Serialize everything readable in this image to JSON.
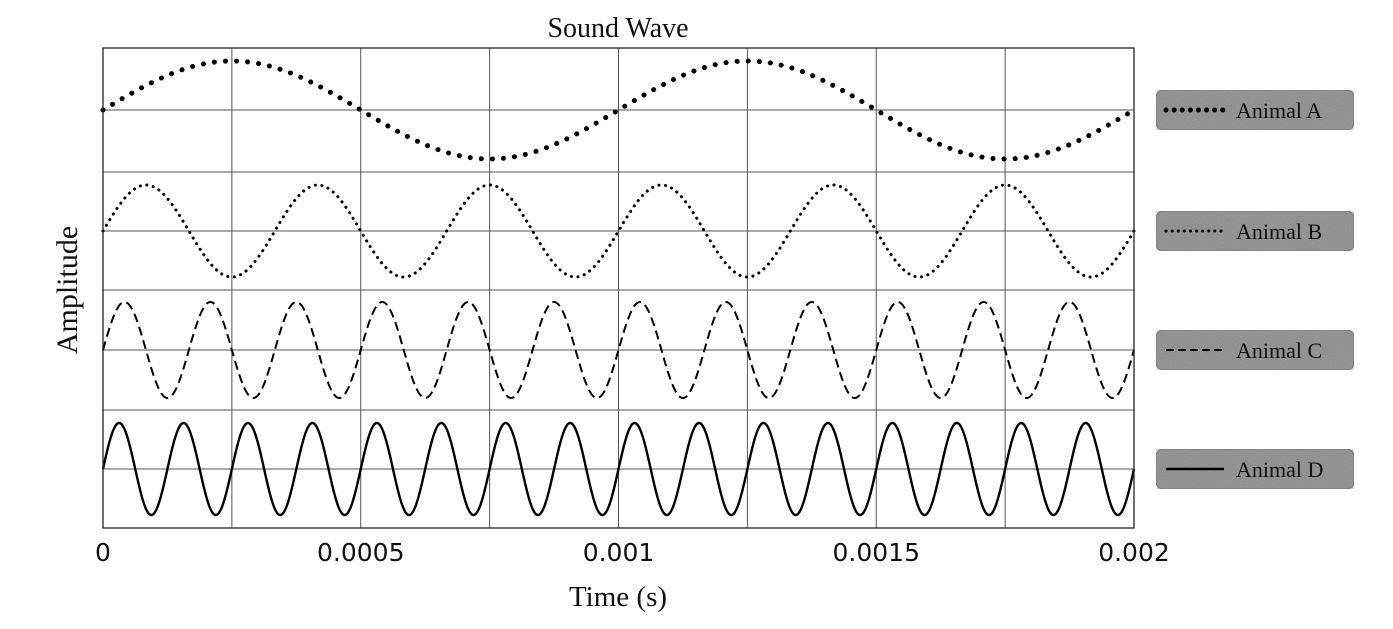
{
  "chart_data": {
    "type": "line",
    "title": "Sound Wave",
    "xlabel": "Time (s)",
    "ylabel": "Amplitude",
    "xlim": [
      0,
      0.002
    ],
    "x_ticks": [
      {
        "value": 0,
        "label": "0"
      },
      {
        "value": 0.0005,
        "label": "0.0005"
      },
      {
        "value": 0.001,
        "label": "0.001"
      },
      {
        "value": 0.0015,
        "label": "0.0015"
      },
      {
        "value": 0.002,
        "label": "0.002"
      }
    ],
    "vertical_gridlines": 8,
    "grid": true,
    "legend_position": "right",
    "series": [
      {
        "name": "Animal A",
        "frequency_hz": 1000,
        "line_style": "dotted-heavy",
        "color": "#000000"
      },
      {
        "name": "Animal B",
        "frequency_hz": 3000,
        "line_style": "dotted",
        "color": "#000000"
      },
      {
        "name": "Animal C",
        "frequency_hz": 6000,
        "line_style": "dashed",
        "color": "#000000"
      },
      {
        "name": "Animal D",
        "frequency_hz": 8000,
        "line_style": "solid",
        "color": "#000000"
      }
    ]
  }
}
